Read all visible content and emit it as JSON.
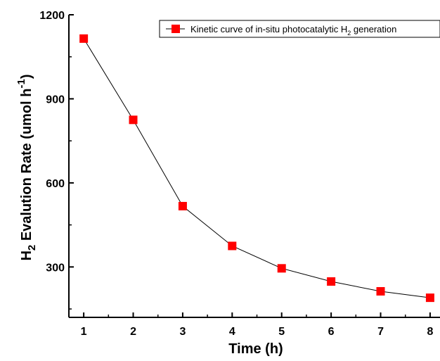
{
  "chart_data": {
    "type": "line",
    "x": [
      1,
      2,
      3,
      4,
      5,
      6,
      7,
      8
    ],
    "series": [
      {
        "name_parts": [
          "Kinetic curve of in-situ photocatalytic H",
          "2",
          " generation"
        ],
        "values": [
          1115,
          825,
          517,
          375,
          295,
          248,
          213,
          190
        ],
        "marker": "square",
        "marker_color": "#ff0000",
        "line_color": "#000000"
      }
    ],
    "xlabel": "Time (h)",
    "ylabel_parts": [
      "H",
      "2",
      " Evalution Rate (umol h",
      "-1",
      ")"
    ],
    "xlim": [
      0.7,
      8.2
    ],
    "ylim": [
      120,
      1200
    ],
    "xticks": [
      1,
      2,
      3,
      4,
      5,
      6,
      7,
      8
    ],
    "yticks": [
      300,
      600,
      900,
      1200
    ],
    "grid": false,
    "legend_position": "top-right"
  }
}
